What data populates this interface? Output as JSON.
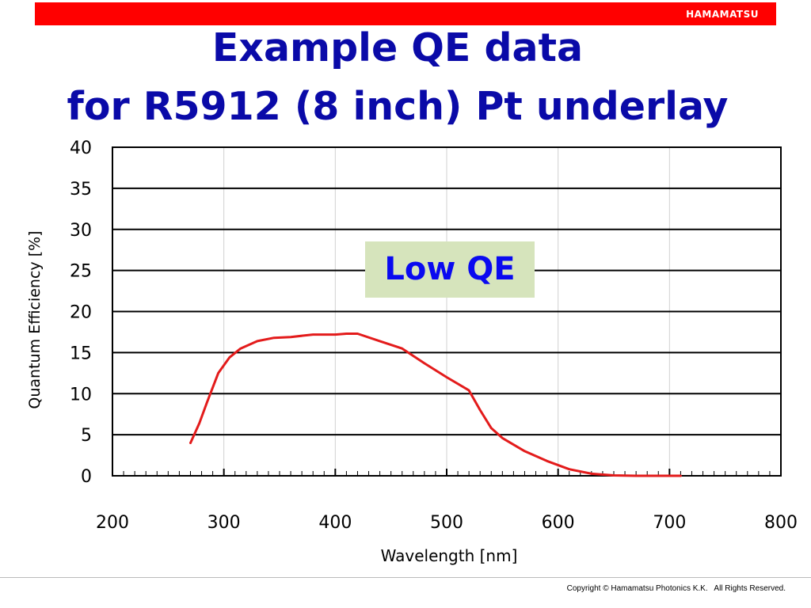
{
  "header": {
    "brand": "HAMAMATSU",
    "bar_color": "#ff0000"
  },
  "title": {
    "line1": "Example QE data",
    "line2": "for R5912 (8 inch) Pt underlay",
    "color": "#0a0aa8"
  },
  "callout": {
    "text": "Low QE",
    "background": "#d6e4bc",
    "color": "#0a0af0"
  },
  "footer": {
    "copyright": "Copyright © Hamamatsu Photonics K.K.   All Rights Reserved."
  },
  "chart_data": {
    "type": "line",
    "title": "",
    "xlabel": "Wavelength [nm]",
    "ylabel": "Quantum Efficiency [%]",
    "xlim": [
      200,
      800
    ],
    "ylim": [
      0,
      40
    ],
    "xticks": [
      200,
      300,
      400,
      500,
      600,
      700,
      800
    ],
    "yticks": [
      0,
      5,
      10,
      15,
      20,
      25,
      30,
      35,
      40
    ],
    "grid": true,
    "legend": "none",
    "series": [
      {
        "color": "#e31b1b",
        "x": [
          270,
          278,
          285,
          295,
          305,
          315,
          330,
          345,
          360,
          380,
          400,
          410,
          420,
          440,
          460,
          480,
          500,
          520,
          530,
          540,
          550,
          570,
          590,
          610,
          630,
          650,
          670,
          690,
          710
        ],
        "y": [
          4.0,
          6.4,
          9.0,
          12.5,
          14.4,
          15.5,
          16.4,
          16.8,
          16.9,
          17.2,
          17.2,
          17.3,
          17.3,
          16.4,
          15.5,
          13.7,
          12.0,
          10.4,
          8.0,
          5.8,
          4.6,
          3.0,
          1.8,
          0.8,
          0.25,
          0.05,
          0.0,
          0.0,
          0.0
        ]
      }
    ]
  }
}
